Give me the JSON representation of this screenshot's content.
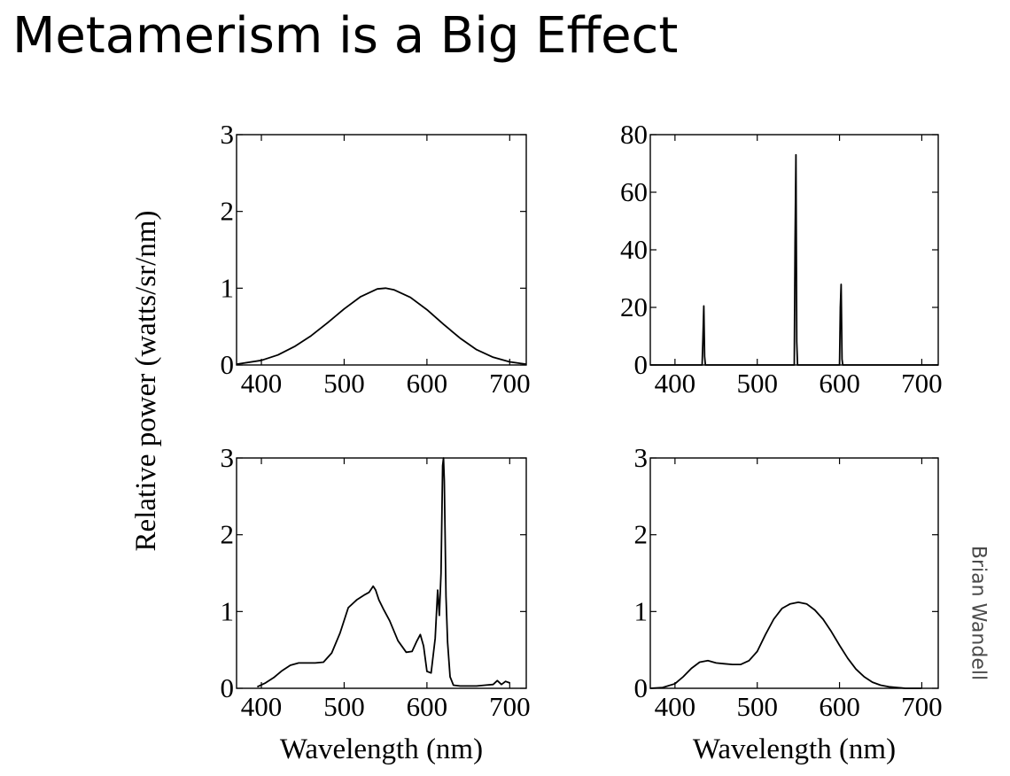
{
  "slide": {
    "title": "Metamerism is a Big Effect",
    "credit": "Brian Wandell"
  },
  "chart_data": [
    {
      "type": "line",
      "position": "top-left",
      "xlim": [
        370,
        720
      ],
      "ylim": [
        0,
        3
      ],
      "xticks": [
        400,
        500,
        600,
        700
      ],
      "yticks": [
        0,
        1,
        2,
        3
      ],
      "grid": false,
      "ylabel": "Relative power (watts/sr/nm)",
      "xlabel": "",
      "series": [
        {
          "x": [
            370,
            400,
            420,
            440,
            460,
            480,
            500,
            520,
            540,
            550,
            560,
            580,
            600,
            620,
            640,
            660,
            680,
            700,
            720
          ],
          "y": [
            0.01,
            0.06,
            0.13,
            0.24,
            0.38,
            0.55,
            0.73,
            0.89,
            0.99,
            1.0,
            0.98,
            0.88,
            0.72,
            0.53,
            0.35,
            0.2,
            0.1,
            0.04,
            0.01
          ]
        }
      ]
    },
    {
      "type": "line",
      "position": "top-right",
      "xlim": [
        370,
        720
      ],
      "ylim": [
        0,
        80
      ],
      "xticks": [
        400,
        500,
        600,
        700
      ],
      "yticks": [
        0,
        20,
        40,
        60,
        80
      ],
      "grid": false,
      "xlabel": "",
      "ylabel": "",
      "series": [
        {
          "x": [
            370,
            433,
            434,
            435,
            436,
            437,
            545,
            546,
            547,
            548,
            549,
            600,
            601,
            602,
            603,
            604,
            720
          ],
          "y": [
            0,
            0,
            9,
            20.5,
            3,
            0,
            0,
            42,
            73,
            8,
            0,
            0,
            20,
            28,
            2,
            0,
            0
          ]
        }
      ]
    },
    {
      "type": "line",
      "position": "bottom-left",
      "xlim": [
        370,
        720
      ],
      "ylim": [
        0,
        3
      ],
      "xticks": [
        400,
        500,
        600,
        700
      ],
      "yticks": [
        0,
        1,
        2,
        3
      ],
      "grid": false,
      "xlabel": "Wavelength (nm)",
      "ylabel": "",
      "series": [
        {
          "x": [
            395,
            405,
            415,
            425,
            435,
            445,
            455,
            465,
            475,
            485,
            495,
            505,
            515,
            525,
            530,
            535,
            538,
            542,
            548,
            555,
            565,
            575,
            582,
            588,
            592,
            596,
            600,
            605,
            610,
            613,
            615,
            617,
            619,
            620,
            621,
            622,
            623,
            625,
            628,
            632,
            640,
            650,
            660,
            670,
            680,
            685,
            690,
            695,
            700
          ],
          "y": [
            0.02,
            0.07,
            0.14,
            0.23,
            0.3,
            0.33,
            0.33,
            0.33,
            0.34,
            0.46,
            0.72,
            1.05,
            1.15,
            1.22,
            1.25,
            1.33,
            1.28,
            1.15,
            1.02,
            0.88,
            0.62,
            0.47,
            0.48,
            0.62,
            0.7,
            0.55,
            0.22,
            0.2,
            0.65,
            1.28,
            0.95,
            1.5,
            2.9,
            3.0,
            2.7,
            2.0,
            1.2,
            0.6,
            0.15,
            0.04,
            0.03,
            0.03,
            0.03,
            0.04,
            0.05,
            0.1,
            0.05,
            0.09,
            0.07
          ]
        }
      ]
    },
    {
      "type": "line",
      "position": "bottom-right",
      "xlim": [
        370,
        720
      ],
      "ylim": [
        0,
        3
      ],
      "xticks": [
        400,
        500,
        600,
        700
      ],
      "yticks": [
        0,
        1,
        2,
        3
      ],
      "grid": false,
      "xlabel": "Wavelength (nm)",
      "ylabel": "",
      "series": [
        {
          "x": [
            370,
            385,
            400,
            410,
            420,
            430,
            440,
            450,
            460,
            470,
            480,
            490,
            500,
            510,
            520,
            530,
            540,
            550,
            560,
            570,
            580,
            590,
            600,
            610,
            620,
            630,
            640,
            650,
            660,
            670,
            680,
            690,
            700
          ],
          "y": [
            0.0,
            0.01,
            0.06,
            0.15,
            0.26,
            0.34,
            0.36,
            0.33,
            0.32,
            0.31,
            0.31,
            0.36,
            0.48,
            0.7,
            0.9,
            1.04,
            1.1,
            1.12,
            1.1,
            1.02,
            0.9,
            0.74,
            0.56,
            0.39,
            0.25,
            0.15,
            0.08,
            0.04,
            0.02,
            0.01,
            0.0,
            0.0,
            0.0
          ]
        }
      ]
    }
  ]
}
